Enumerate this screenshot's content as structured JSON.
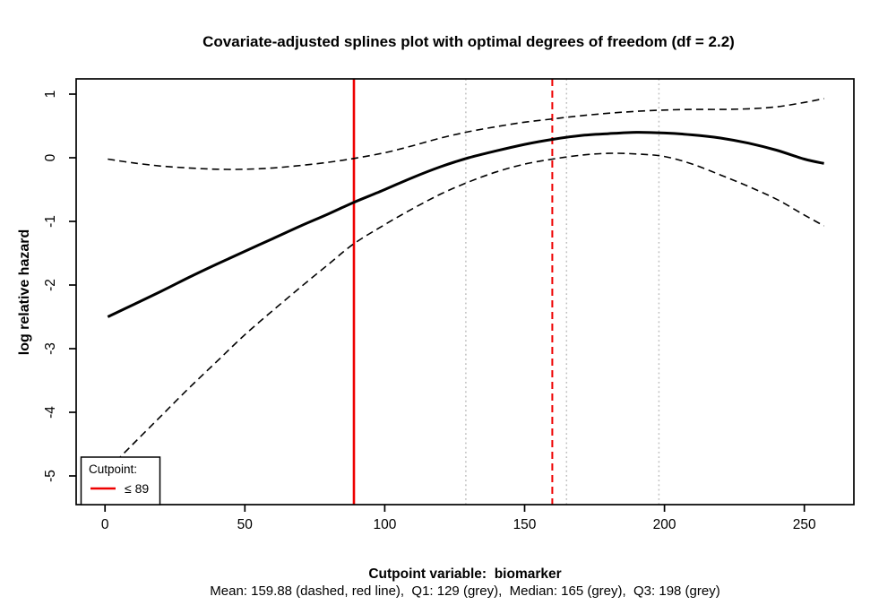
{
  "figure": {
    "background": "#ffffff",
    "frame_color": "#000000"
  },
  "chart_data": {
    "type": "line",
    "title": "Covariate-adjusted splines plot with optimal degrees of freedom (df = 2.2)",
    "xlabel": "Cutpoint variable:  biomarker",
    "xlabel_note": "Mean: 159.88 (dashed, red line),  Q1: 129 (grey),  Median: 165 (grey),  Q3: 198 (grey)",
    "ylabel": "log relative hazard",
    "xlim": [
      -10.3,
      267.7
    ],
    "ylim": [
      -5.45,
      1.24
    ],
    "x_ticks": [
      0,
      50,
      100,
      150,
      200,
      250
    ],
    "y_ticks": [
      -5,
      -4,
      -3,
      -2,
      -1,
      0,
      1
    ],
    "grid": false,
    "legend_position": "bottom-left",
    "series": [
      {
        "name": "spline-fit",
        "style": "solid",
        "color": "#000000",
        "width": 3,
        "x": [
          1,
          10,
          20,
          30,
          40,
          50,
          60,
          70,
          80,
          89,
          100,
          110,
          120,
          130,
          140,
          150,
          160,
          170,
          180,
          190,
          200,
          210,
          220,
          230,
          240,
          250,
          257
        ],
        "y": [
          -2.5,
          -2.31,
          -2.1,
          -1.88,
          -1.67,
          -1.47,
          -1.27,
          -1.07,
          -0.88,
          -0.7,
          -0.5,
          -0.31,
          -0.14,
          0.0,
          0.11,
          0.21,
          0.29,
          0.35,
          0.38,
          0.4,
          0.39,
          0.36,
          0.31,
          0.23,
          0.12,
          -0.02,
          -0.09
        ]
      },
      {
        "name": "upper-confidence-band",
        "style": "dashed",
        "color": "#000000",
        "width": 1.6,
        "x": [
          1,
          10,
          20,
          30,
          40,
          50,
          60,
          70,
          80,
          89,
          100,
          110,
          120,
          130,
          140,
          150,
          160,
          170,
          180,
          190,
          200,
          210,
          220,
          230,
          240,
          250,
          257
        ],
        "y": [
          -0.02,
          -0.08,
          -0.13,
          -0.16,
          -0.18,
          -0.18,
          -0.16,
          -0.12,
          -0.07,
          -0.01,
          0.08,
          0.19,
          0.31,
          0.41,
          0.49,
          0.56,
          0.61,
          0.66,
          0.7,
          0.73,
          0.75,
          0.76,
          0.76,
          0.77,
          0.8,
          0.87,
          0.93
        ]
      },
      {
        "name": "lower-confidence-band",
        "style": "dashed",
        "color": "#000000",
        "width": 1.6,
        "x": [
          1,
          10,
          20,
          30,
          40,
          50,
          60,
          70,
          80,
          89,
          100,
          110,
          120,
          130,
          140,
          150,
          160,
          170,
          180,
          190,
          200,
          210,
          220,
          230,
          240,
          250,
          257
        ],
        "y": [
          -4.9,
          -4.5,
          -4.06,
          -3.62,
          -3.2,
          -2.78,
          -2.4,
          -2.03,
          -1.67,
          -1.35,
          -1.05,
          -0.8,
          -0.57,
          -0.38,
          -0.22,
          -0.1,
          -0.02,
          0.04,
          0.07,
          0.06,
          0.02,
          -0.1,
          -0.27,
          -0.45,
          -0.65,
          -0.9,
          -1.07
        ]
      }
    ],
    "vlines": [
      {
        "name": "cutpoint-line",
        "x": 89,
        "color": "#ee0000",
        "style": "solid",
        "width": 2.6
      },
      {
        "name": "mean-line",
        "x": 159.88,
        "color": "#ee0000",
        "style": "dashed",
        "width": 2
      },
      {
        "name": "q1-line",
        "x": 129,
        "color": "#bebebe",
        "style": "dotted",
        "width": 1.5
      },
      {
        "name": "median-line",
        "x": 165,
        "color": "#bebebe",
        "style": "dotted",
        "width": 1.5
      },
      {
        "name": "q3-line",
        "x": 198,
        "color": "#bebebe",
        "style": "dotted",
        "width": 1.5
      }
    ],
    "stats": {
      "df": 2.2,
      "cutpoint": 89,
      "mean": 159.88,
      "q1": 129,
      "median": 165,
      "q3": 198
    }
  },
  "legend": {
    "title": "Cutpoint:",
    "item_label": "≤ 89",
    "item_color": "#ee0000"
  }
}
